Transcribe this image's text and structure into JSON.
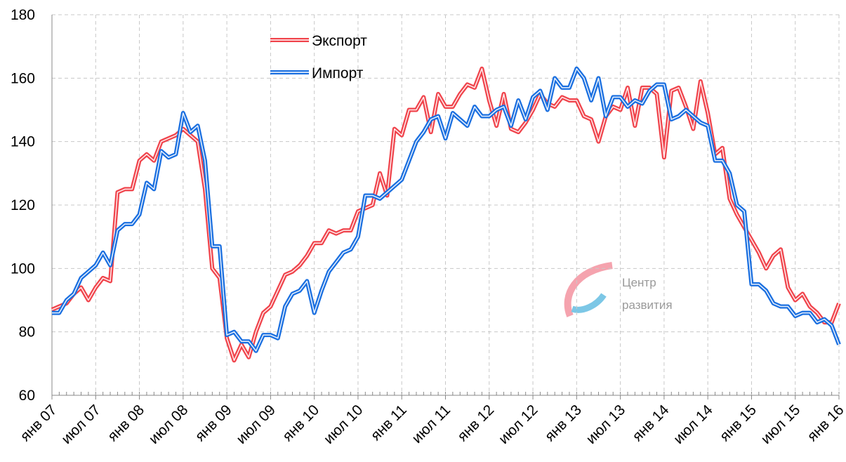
{
  "chart_data": {
    "type": "line",
    "categories": [
      "янв 07",
      null,
      null,
      null,
      null,
      null,
      "июл 07",
      null,
      null,
      null,
      null,
      null,
      "янв 08",
      null,
      null,
      null,
      null,
      null,
      "июл 08",
      null,
      null,
      null,
      null,
      null,
      "янв 09",
      null,
      null,
      null,
      null,
      null,
      "июл 09",
      null,
      null,
      null,
      null,
      null,
      "янв 10",
      null,
      null,
      null,
      null,
      null,
      "июл 10",
      null,
      null,
      null,
      null,
      null,
      "янв 11",
      null,
      null,
      null,
      null,
      null,
      "июл 11",
      null,
      null,
      null,
      null,
      null,
      "янв 12",
      null,
      null,
      null,
      null,
      null,
      "июл 12",
      null,
      null,
      null,
      null,
      null,
      "янв 13",
      null,
      null,
      null,
      null,
      null,
      "июл 13",
      null,
      null,
      null,
      null,
      null,
      "янв 14",
      null,
      null,
      null,
      null,
      null,
      "июл 14",
      null,
      null,
      null,
      null,
      null,
      "янв 15",
      null,
      null,
      null,
      null,
      null,
      "июл 15",
      null,
      null,
      null,
      null,
      null,
      "янв 16"
    ],
    "series": [
      {
        "name": "Экспорт",
        "color": "#f0444c",
        "values": [
          87,
          88,
          89,
          92,
          94,
          90,
          94,
          97,
          96,
          124,
          125,
          125,
          134,
          136,
          134,
          140,
          141,
          142,
          144,
          142,
          140,
          125,
          100,
          97,
          78,
          71,
          76,
          72,
          80,
          86,
          88,
          93,
          98,
          99,
          101,
          104,
          108,
          108,
          112,
          111,
          112,
          112,
          118,
          119,
          120,
          130,
          123,
          144,
          142,
          150,
          150,
          154,
          143,
          155,
          151,
          151,
          155,
          158,
          157,
          163,
          153,
          145,
          155,
          144,
          143,
          146,
          150,
          155,
          152,
          151,
          154,
          153,
          153,
          148,
          147,
          140,
          148,
          151,
          150,
          157,
          145,
          157,
          157,
          155,
          135,
          156,
          157,
          151,
          144,
          159,
          149,
          136,
          138,
          122,
          117,
          113,
          109,
          105,
          100,
          104,
          106,
          94,
          90,
          92,
          88,
          86,
          83,
          83,
          89
        ]
      },
      {
        "name": "Импорт",
        "color": "#1a6fe0",
        "values": [
          86,
          86,
          90,
          92,
          97,
          99,
          101,
          105,
          101,
          112,
          114,
          114,
          117,
          127,
          125,
          137,
          135,
          136,
          149,
          143,
          145,
          134,
          107,
          107,
          79,
          80,
          77,
          77,
          74,
          79,
          79,
          78,
          88,
          92,
          93,
          96,
          86,
          93,
          99,
          102,
          105,
          106,
          110,
          123,
          123,
          122,
          124,
          126,
          128,
          134,
          140,
          143,
          147,
          148,
          141,
          149,
          147,
          145,
          151,
          148,
          148,
          150,
          151,
          145,
          153,
          147,
          154,
          156,
          150,
          160,
          157,
          157,
          163,
          160,
          153,
          160,
          148,
          154,
          154,
          151,
          153,
          152,
          156,
          158,
          158,
          147,
          148,
          150,
          148,
          146,
          145,
          134,
          134,
          130,
          120,
          118,
          95,
          95,
          93,
          89,
          88,
          88,
          85,
          86,
          86,
          83,
          84,
          82,
          76
        ]
      }
    ],
    "ylim": [
      60,
      180
    ],
    "yticks": [
      60,
      80,
      100,
      120,
      140,
      160,
      180
    ],
    "grid": true,
    "watermark": [
      "Центр",
      "развития"
    ]
  }
}
